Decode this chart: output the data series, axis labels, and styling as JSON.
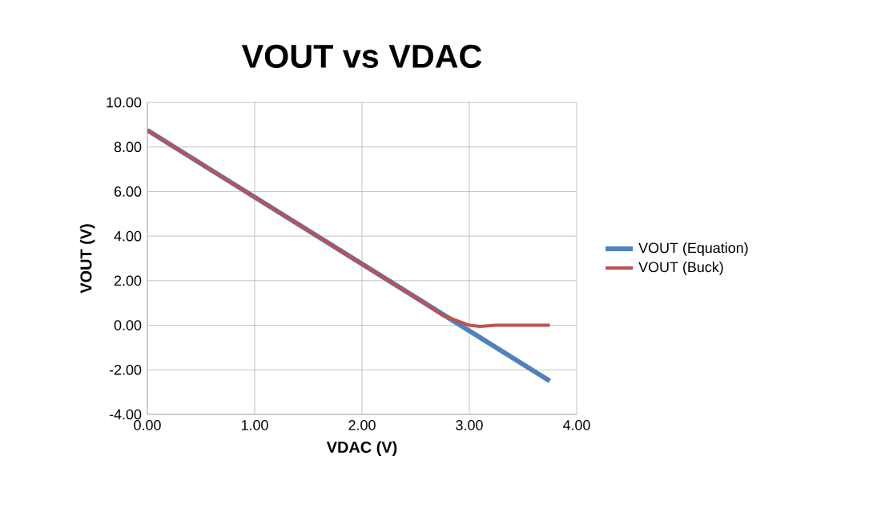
{
  "chart_data": {
    "type": "line",
    "title": "VOUT vs VDAC",
    "xlabel": "VDAC (V)",
    "ylabel": "VOUT (V)",
    "xlim": [
      0,
      4
    ],
    "ylim": [
      -4,
      10
    ],
    "xticks": [
      {
        "value": 0,
        "label": "0.00"
      },
      {
        "value": 1,
        "label": "1.00"
      },
      {
        "value": 2,
        "label": "2.00"
      },
      {
        "value": 3,
        "label": "3.00"
      },
      {
        "value": 4,
        "label": "4.00"
      }
    ],
    "yticks": [
      {
        "value": -4,
        "label": "-4.00"
      },
      {
        "value": -2,
        "label": "-2.00"
      },
      {
        "value": 0,
        "label": "0.00"
      },
      {
        "value": 2,
        "label": "2.00"
      },
      {
        "value": 4,
        "label": "4.00"
      },
      {
        "value": 6,
        "label": "6.00"
      },
      {
        "value": 8,
        "label": "8.00"
      },
      {
        "value": 10,
        "label": "10.00"
      }
    ],
    "grid": true,
    "legend": "right",
    "marker": "none",
    "line_style": "solid",
    "series": [
      {
        "name": "VOUT (Equation)",
        "color": "#4f81bd",
        "x": [
          0,
          3.75
        ],
        "values": [
          8.75,
          -2.5
        ]
      },
      {
        "name": "VOUT (Buck)",
        "color": "#c0504d",
        "x": [
          0,
          1,
          2,
          2.5,
          2.75,
          3.0,
          3.1,
          3.25,
          3.5,
          3.75
        ],
        "values": [
          8.75,
          5.75,
          2.75,
          1.25,
          0.45,
          0.0,
          -0.05,
          0.0,
          0.0,
          0.0
        ]
      }
    ]
  }
}
